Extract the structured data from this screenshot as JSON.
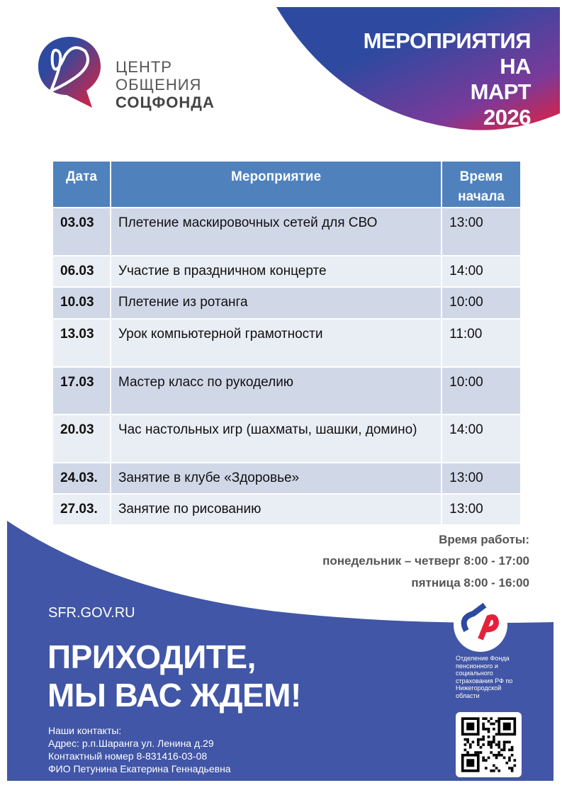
{
  "header": {
    "title_lines": [
      "МЕРОПРИЯТИЯ",
      "НА",
      "МАРТ",
      "2026"
    ],
    "logo_lines": [
      "ЦЕНТР",
      "ОБЩЕНИЯ",
      "СОЦФОНДА"
    ]
  },
  "table": {
    "headers": [
      "Дата",
      "Мероприятие",
      "Время начала"
    ],
    "rows": [
      {
        "date": "03.03",
        "event": "Плетение маскировочных сетей для СВО",
        "time": "13:00"
      },
      {
        "date": "06.03",
        "event": "Участие в праздничном концерте",
        "time": "14:00"
      },
      {
        "date": "10.03",
        "event": "Плетение из ротанга",
        "time": "10:00"
      },
      {
        "date": "13.03",
        "event": "Урок компьютерной грамотности",
        "time": "11:00"
      },
      {
        "date": "17.03",
        "event": "Мастер класс по рукоделию",
        "time": "10:00"
      },
      {
        "date": "20.03",
        "event": "Час настольных игр (шахматы, шашки, домино)",
        "time": "14:00"
      },
      {
        "date": "24.03.",
        "event": "Занятие в клубе «Здоровье»",
        "time": "13:00"
      },
      {
        "date": "27.03.",
        "event": "Занятие по рисованию",
        "time": "13:00"
      }
    ]
  },
  "hours": {
    "title": "Время работы:",
    "line1": "понедельник – четверг  8:00 - 17:00",
    "line2": "пятница 8:00 - 16:00"
  },
  "footer": {
    "site": "SFR.GOV.RU",
    "slogan1": "ПРИХОДИТЕ,",
    "slogan2": "МЫ ВАС ЖДЕМ!",
    "contacts_title": "Наши контакты:",
    "address": "Адрес: р.п.Шаранга  ул. Ленина д.29",
    "phone": "Контактный номер 8-831416-03-08",
    "person": "ФИО Петунина Екатерина  Геннадьевна",
    "org": "Отделение Фонда пенсионного и социального страхования РФ по Нижегородской области"
  },
  "colors": {
    "blue": "#4156a6",
    "header": "#4f81bd",
    "row_odd": "#d0d8e8",
    "row_even": "#e9edf4",
    "red": "#e5203a"
  }
}
